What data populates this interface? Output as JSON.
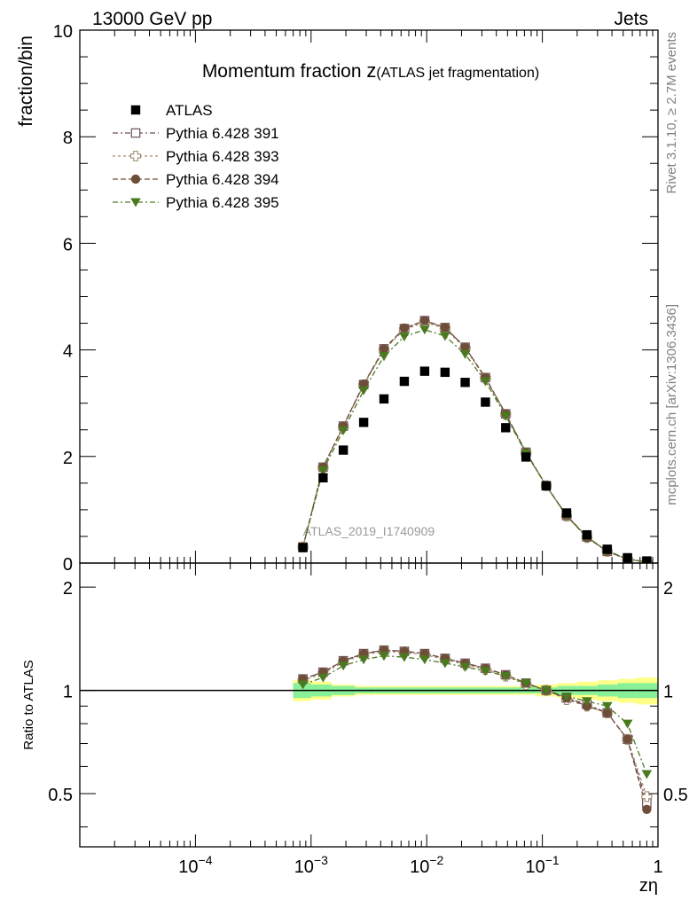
{
  "header": {
    "energy_label": "13000 GeV pp",
    "category_label": "Jets"
  },
  "side_texts": {
    "rivet": "Rivet 3.1.10, ≥ 2.7M events",
    "mcplots": "mcplots.cern.ch [arXiv:1306.3436]"
  },
  "chart_data": {
    "type": "scatter",
    "title_main": "Momentum fraction ",
    "title_z": "z",
    "title_sub": "(ATLAS jet fragmentation)",
    "ylabel": "fraction/bin",
    "ratio_ylabel": "Ratio to ATLAS",
    "xlabel": "zη",
    "analysis_label": "ATLAS_2019_I1740909",
    "x_scale": "log",
    "xlim": [
      1e-05,
      1
    ],
    "ylim": [
      0,
      10
    ],
    "ratio_ylim": [
      0.35,
      2.35
    ],
    "y_ticks": [
      "0",
      "2",
      "4",
      "6",
      "8",
      "10"
    ],
    "ratio_ticks": [
      "0.5",
      "1",
      "2"
    ],
    "x_tick_labels": [
      {
        "base": "10",
        "exp": "−4"
      },
      {
        "base": "10",
        "exp": "−3"
      },
      {
        "base": "10",
        "exp": "−2"
      },
      {
        "base": "10",
        "exp": "−1"
      },
      {
        "base": "1",
        "exp": ""
      }
    ],
    "legend_position": "top-left",
    "x": [
      0.00085,
      0.00127,
      0.0019,
      0.00285,
      0.00427,
      0.0064,
      0.0096,
      0.0144,
      0.0215,
      0.0322,
      0.0482,
      0.0722,
      0.108,
      0.162,
      0.243,
      0.364,
      0.545,
      0.8
    ],
    "series": [
      {
        "name": "ATLAS",
        "marker": "square-filled",
        "color": "#000000",
        "values": [
          0.29,
          1.6,
          2.12,
          2.64,
          3.08,
          3.41,
          3.6,
          3.58,
          3.39,
          3.02,
          2.54,
          1.99,
          1.45,
          0.94,
          0.53,
          0.26,
          0.1,
          0.04
        ]
      },
      {
        "name": "Pythia 6.428 391",
        "marker": "square-open",
        "color": "#6e4e5e",
        "dash": "6,3,2,3",
        "values": [
          0.3,
          1.8,
          2.57,
          3.35,
          4.02,
          4.4,
          4.55,
          4.42,
          4.05,
          3.48,
          2.8,
          2.08,
          1.45,
          0.89,
          0.49,
          0.22,
          0.07,
          0.02
        ]
      },
      {
        "name": "Pythia 6.428 393",
        "marker": "cross-open",
        "color": "#a08c6c",
        "dash": "3,3",
        "values": [
          0.3,
          1.79,
          2.56,
          3.34,
          4.0,
          4.38,
          4.52,
          4.4,
          4.03,
          3.47,
          2.79,
          2.07,
          1.45,
          0.88,
          0.48,
          0.22,
          0.07,
          0.02
        ]
      },
      {
        "name": "Pythia 6.428 394",
        "marker": "circle-filled",
        "color": "#6e4e38",
        "dash": "6,3",
        "values": [
          0.3,
          1.8,
          2.57,
          3.36,
          4.02,
          4.41,
          4.55,
          4.42,
          4.05,
          3.48,
          2.8,
          2.08,
          1.45,
          0.89,
          0.48,
          0.22,
          0.07,
          0.02
        ]
      },
      {
        "name": "Pythia 6.428 395",
        "marker": "triangle-down-filled",
        "color": "#4a7a20",
        "dash": "6,3,2,3",
        "values": [
          0.3,
          1.74,
          2.49,
          3.24,
          3.88,
          4.25,
          4.38,
          4.26,
          3.92,
          3.41,
          2.76,
          2.06,
          1.45,
          0.9,
          0.49,
          0.23,
          0.08,
          0.02
        ]
      }
    ],
    "ratio_series": [
      {
        "name": "Pythia 6.428 391",
        "values": [
          1.08,
          1.13,
          1.22,
          1.28,
          1.31,
          1.3,
          1.28,
          1.24,
          1.2,
          1.16,
          1.11,
          1.05,
          1.0,
          0.95,
          0.91,
          0.86,
          0.72,
          0.47
        ]
      },
      {
        "name": "Pythia 6.428 393",
        "values": [
          1.07,
          1.12,
          1.21,
          1.27,
          1.3,
          1.29,
          1.27,
          1.23,
          1.19,
          1.15,
          1.1,
          1.04,
          1.0,
          0.94,
          0.9,
          0.86,
          0.72,
          0.49
        ]
      },
      {
        "name": "Pythia 6.428 394",
        "values": [
          1.08,
          1.13,
          1.22,
          1.28,
          1.31,
          1.3,
          1.28,
          1.24,
          1.2,
          1.16,
          1.11,
          1.05,
          1.0,
          0.95,
          0.9,
          0.86,
          0.72,
          0.45
        ]
      },
      {
        "name": "Pythia 6.428 395",
        "values": [
          1.04,
          1.09,
          1.18,
          1.23,
          1.26,
          1.25,
          1.23,
          1.2,
          1.17,
          1.14,
          1.1,
          1.05,
          1.0,
          0.96,
          0.93,
          0.9,
          0.8,
          0.57
        ]
      }
    ],
    "uncertainty_band": {
      "x_edges": [
        0.0007,
        0.001,
        0.0015,
        0.0024,
        0.0036,
        0.0053,
        0.008,
        0.012,
        0.018,
        0.027,
        0.04,
        0.06,
        0.09,
        0.135,
        0.2,
        0.3,
        0.45,
        0.65,
        1.0
      ],
      "stat_half_width": [
        0.05,
        0.04,
        0.03,
        0.02,
        0.02,
        0.02,
        0.02,
        0.02,
        0.02,
        0.02,
        0.02,
        0.02,
        0.02,
        0.03,
        0.03,
        0.04,
        0.05,
        0.05
      ],
      "total_half_width": [
        0.07,
        0.06,
        0.04,
        0.03,
        0.03,
        0.03,
        0.03,
        0.03,
        0.03,
        0.03,
        0.03,
        0.03,
        0.04,
        0.05,
        0.06,
        0.07,
        0.08,
        0.09
      ],
      "stat_color": "#88f098",
      "total_color": "#ffff88"
    }
  }
}
